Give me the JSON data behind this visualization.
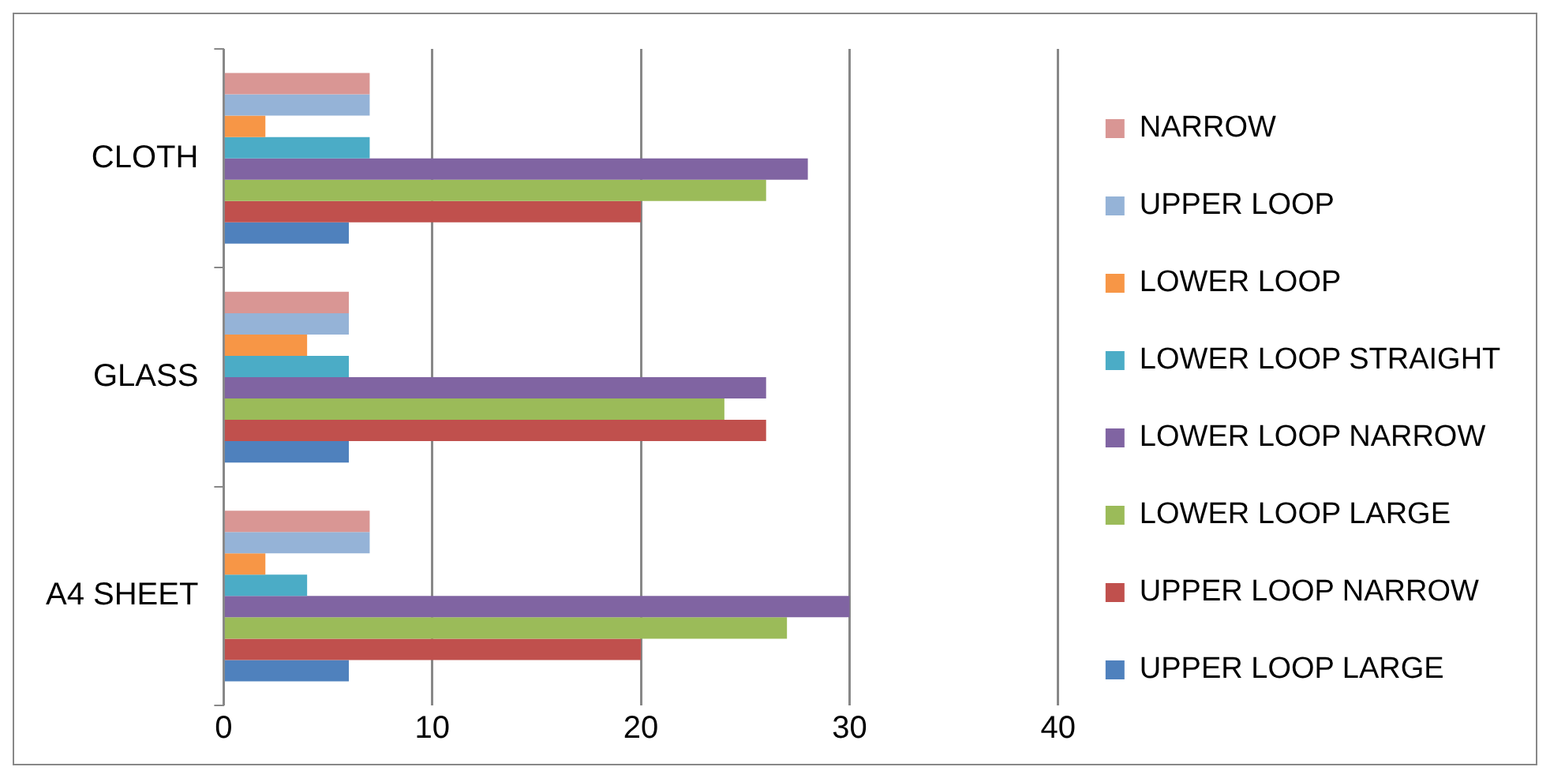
{
  "chart_data": {
    "type": "bar",
    "orientation": "horizontal",
    "categories": [
      "CLOTH",
      "GLASS",
      "A4 SHEET"
    ],
    "series": [
      {
        "name": "NARROW",
        "color": "#d99694",
        "values": [
          7,
          6,
          7
        ]
      },
      {
        "name": "UPPER LOOP",
        "color": "#95b3d7",
        "values": [
          7,
          6,
          7
        ]
      },
      {
        "name": "LOWER LOOP",
        "color": "#f79646",
        "values": [
          2,
          4,
          2
        ]
      },
      {
        "name": "LOWER LOOP STRAIGHT",
        "color": "#4bacc6",
        "values": [
          7,
          6,
          4
        ]
      },
      {
        "name": "LOWER LOOP NARROW",
        "color": "#8064a2",
        "values": [
          28,
          26,
          30
        ]
      },
      {
        "name": "LOWER LOOP LARGE",
        "color": "#9bbb59",
        "values": [
          26,
          24,
          27
        ]
      },
      {
        "name": "UPPER LOOP NARROW",
        "color": "#c0504d",
        "values": [
          20,
          26,
          20
        ]
      },
      {
        "name": "UPPER LOOP LARGE",
        "color": "#4f81bd",
        "values": [
          6,
          6,
          6
        ]
      }
    ],
    "xlim": [
      0,
      40
    ],
    "xticks": [
      0,
      10,
      20,
      30,
      40
    ],
    "grid": "x",
    "legend": "right"
  }
}
